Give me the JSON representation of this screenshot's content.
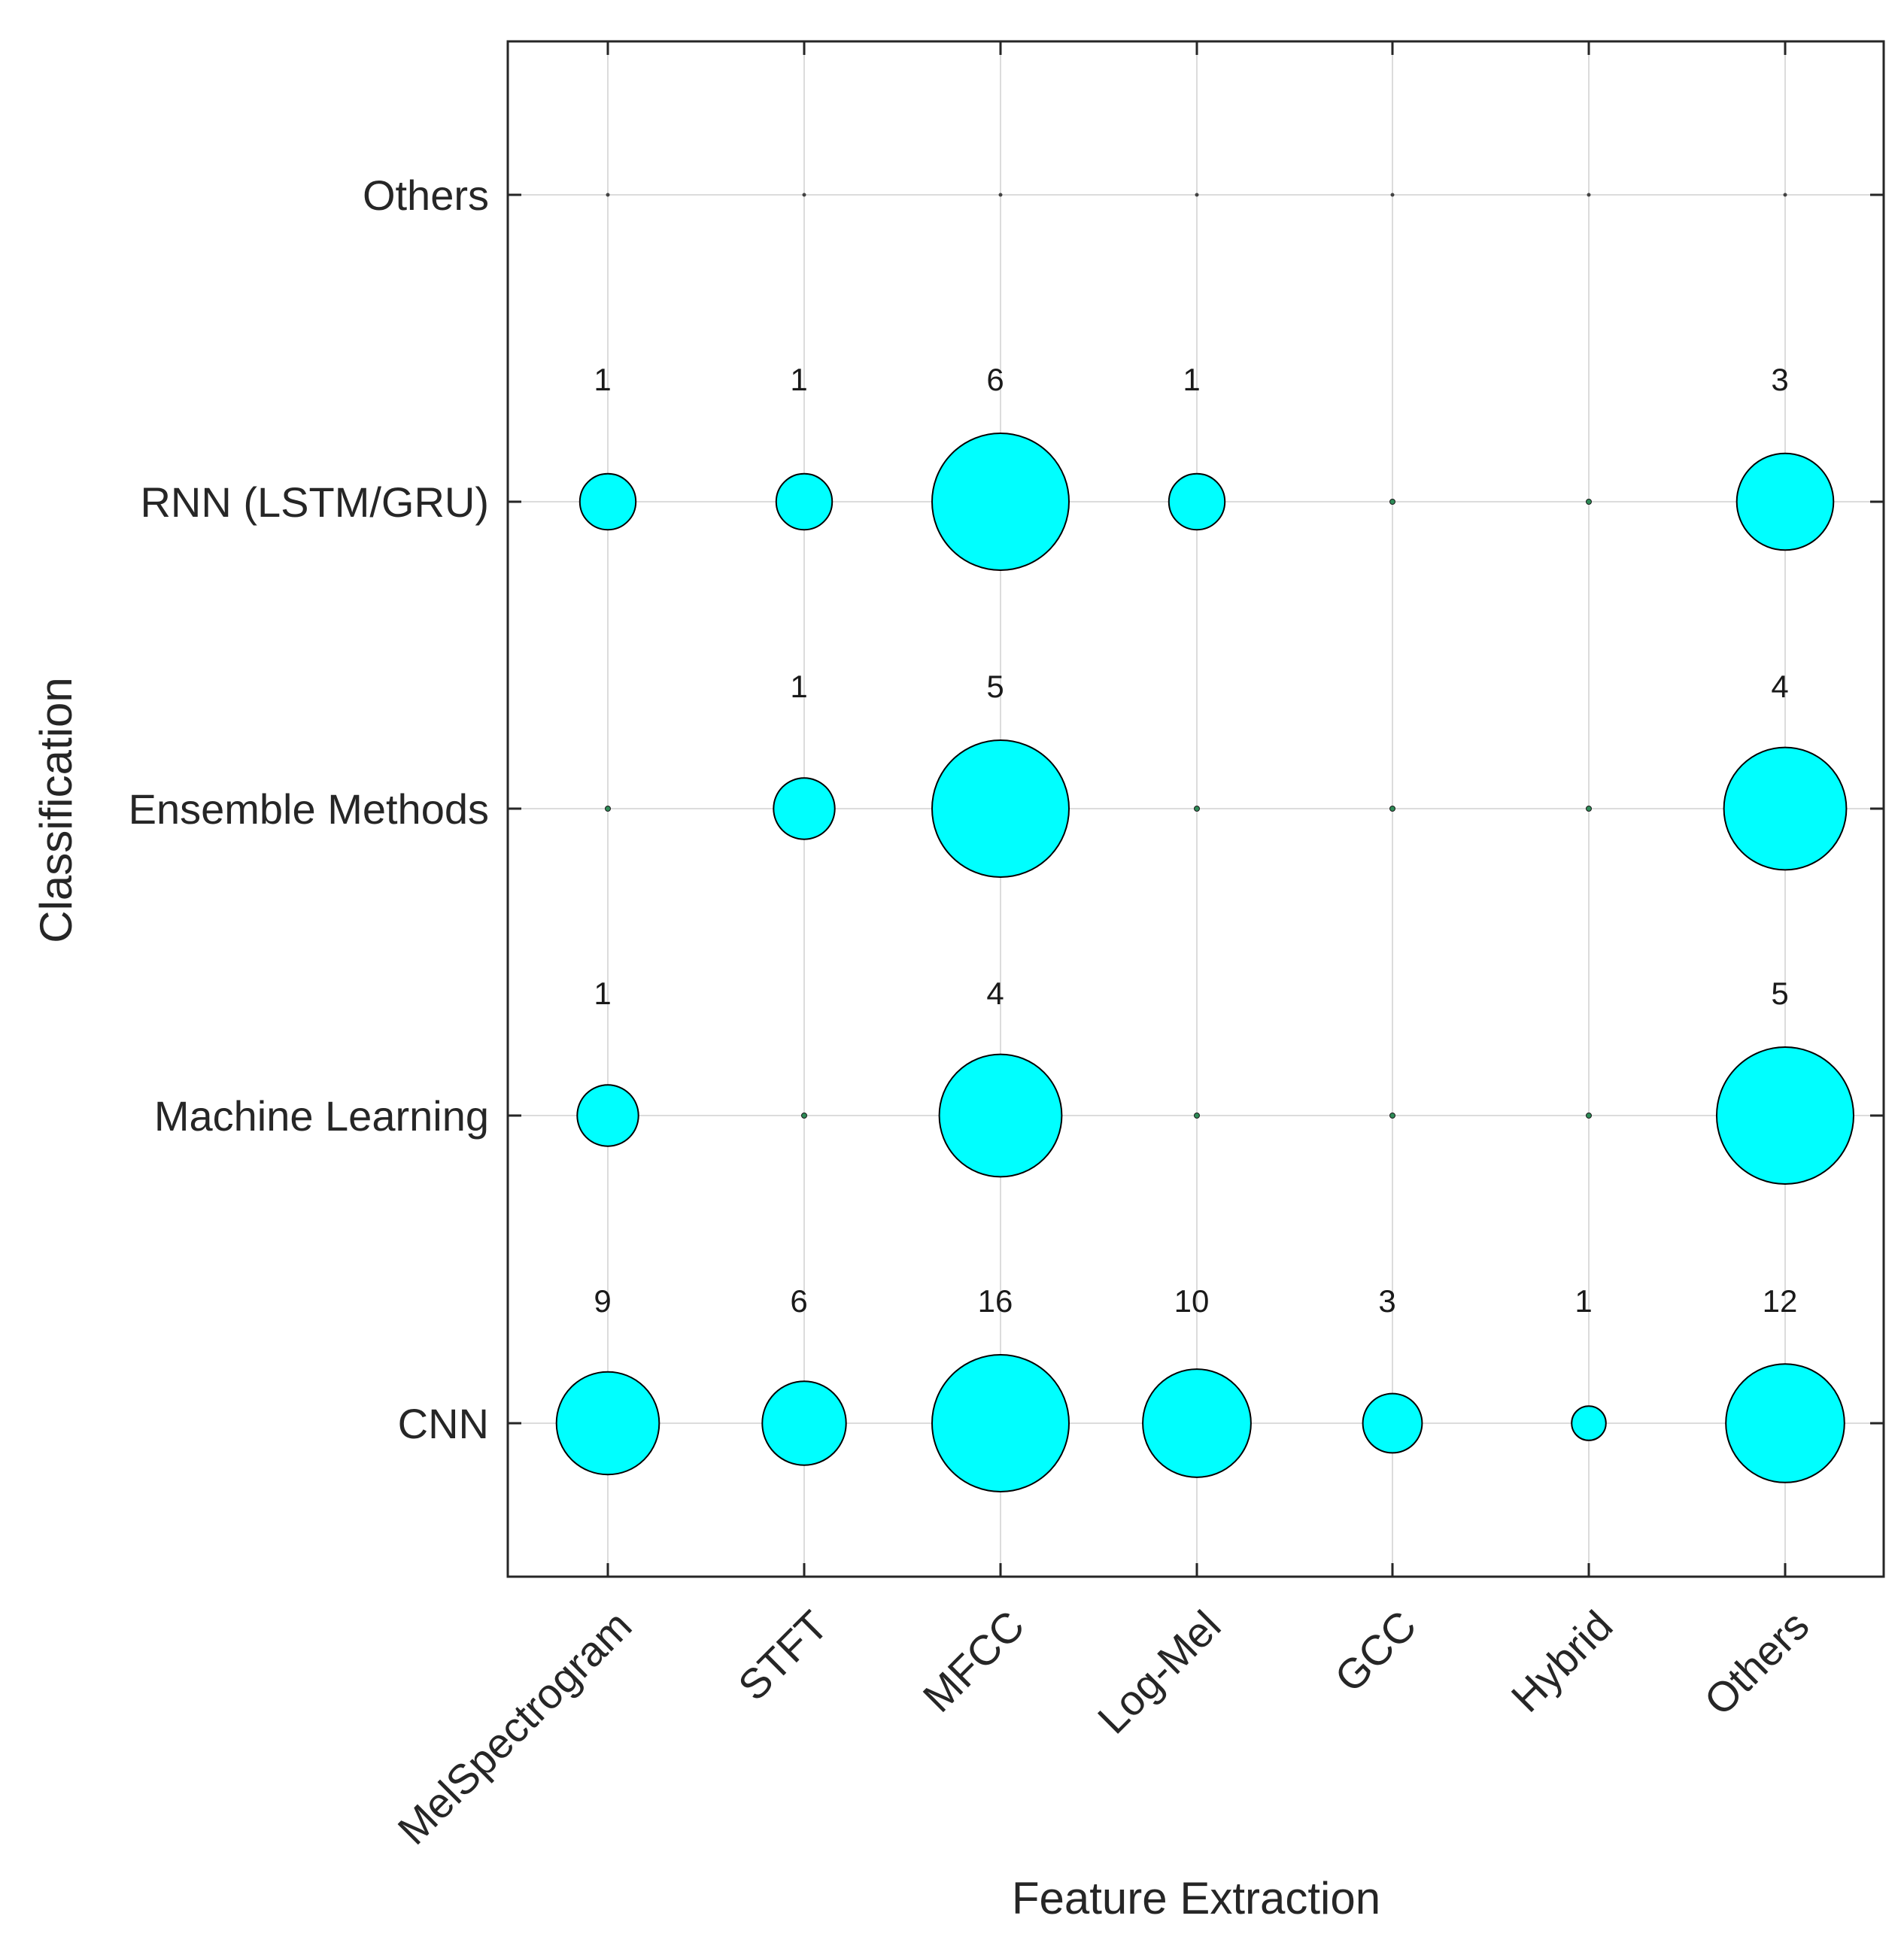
{
  "chart_data": {
    "type": "scatter",
    "subtype": "bubble",
    "title": "",
    "xlabel": "Feature Extraction",
    "ylabel": "Classification",
    "x_categories": [
      "MelSpectrogram",
      "STFT",
      "MFCC",
      "Log-Mel",
      "GCC",
      "Hybrid",
      "Others"
    ],
    "y_categories": [
      "CNN",
      "Machine Learning",
      "Ensemble Methods",
      "RNN (LSTM/GRU)",
      "Others"
    ],
    "grid": true,
    "bubble_color": "#00ffff",
    "edge_color": "#000000",
    "values": [
      [
        9,
        6,
        16,
        10,
        3,
        1,
        12
      ],
      [
        1,
        0,
        4,
        0,
        0,
        0,
        5
      ],
      [
        0,
        1,
        5,
        0,
        0,
        0,
        4
      ],
      [
        1,
        1,
        6,
        1,
        0,
        0,
        3
      ],
      [
        0,
        0,
        0,
        0,
        0,
        0,
        0
      ]
    ]
  }
}
